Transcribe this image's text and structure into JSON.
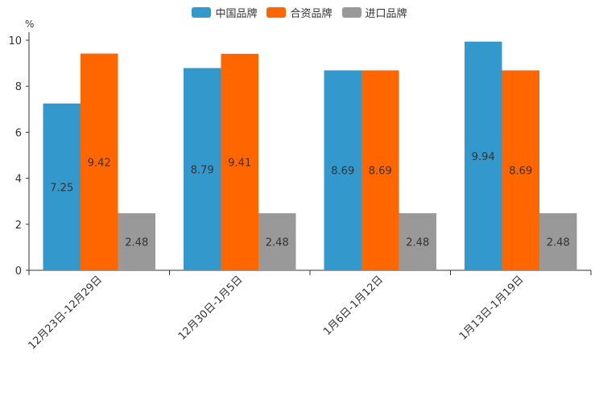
{
  "chart_data": {
    "type": "bar",
    "title": "",
    "xlabel": "",
    "ylabel": "%",
    "ylim": [
      0,
      10
    ],
    "yticks": [
      0,
      2,
      4,
      6,
      8,
      10
    ],
    "grid": false,
    "legend_position": "top-center",
    "categories": [
      "12月23日-12月29日",
      "12月30日-1月5日",
      "1月6日-1月12日",
      "1月13日-1月19日"
    ],
    "series": [
      {
        "name": "中国品牌",
        "color": "#3399cc",
        "values": [
          7.25,
          8.79,
          8.69,
          9.94
        ]
      },
      {
        "name": "合资品牌",
        "color": "#ff6600",
        "values": [
          9.42,
          9.41,
          8.69,
          8.69
        ]
      },
      {
        "name": "进口品牌",
        "color": "#999999",
        "values": [
          2.48,
          2.48,
          2.48,
          2.48
        ]
      }
    ]
  }
}
